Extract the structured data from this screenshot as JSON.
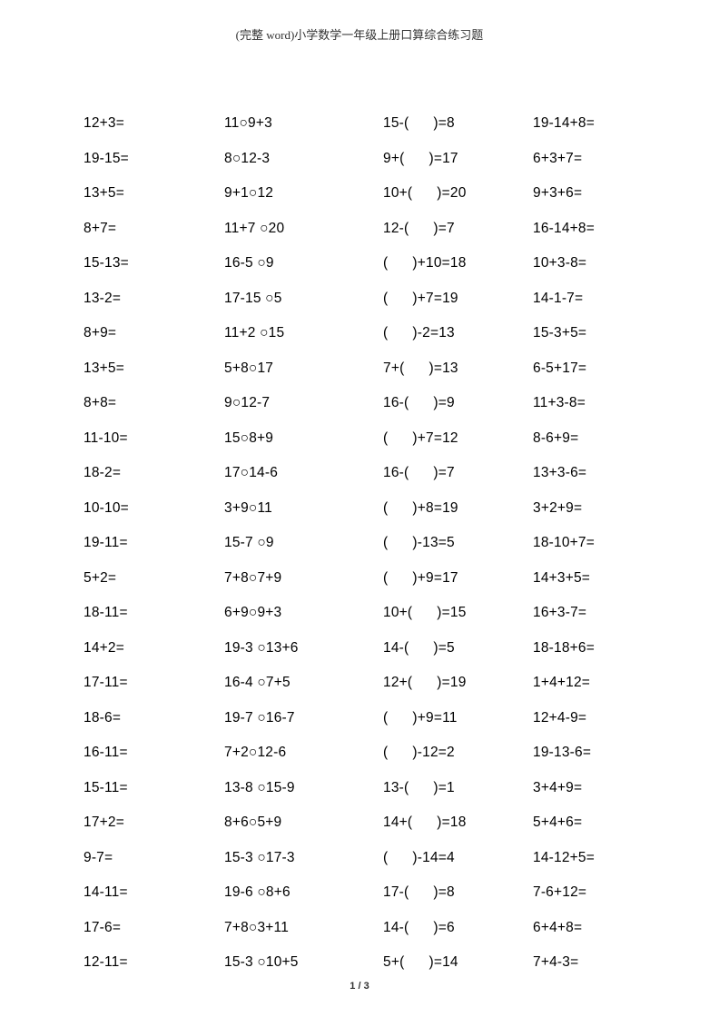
{
  "header": "(完整 word)小学数学一年级上册口算综合练习题",
  "footer": "1 / 3",
  "columns": [
    [
      "12+3=",
      "19-15=",
      "13+5=",
      "8+7=",
      "15-13=",
      "13-2=",
      "8+9=",
      "13+5=",
      "8+8=",
      "11-10=",
      "18-2=",
      "10-10=",
      "19-11=",
      "5+2=",
      "18-11=",
      "14+2=",
      "17-11=",
      "18-6=",
      "16-11=",
      "15-11=",
      "17+2=",
      "9-7=",
      "14-11=",
      "17-6=",
      "12-11="
    ],
    [
      "11○9+3",
      "8○12-3",
      "9+1○12",
      "11+7 ○20",
      "16-5 ○9",
      "17-15 ○5",
      "11+2 ○15",
      "5+8○17",
      "9○12-7",
      "15○8+9",
      "17○14-6",
      "3+9○11",
      "15-7 ○9",
      "7+8○7+9",
      "6+9○9+3",
      "19-3 ○13+6",
      "16-4 ○7+5",
      "19-7 ○16-7",
      "7+2○12-6",
      "13-8 ○15-9",
      "8+6○5+9",
      "15-3 ○17-3",
      "19-6 ○8+6",
      "7+8○3+11",
      "15-3 ○10+5"
    ],
    [
      "15-(      )=8",
      "9+(      )=17",
      "10+(      )=20",
      "12-(      )=7",
      "(      )+10=18",
      "(      )+7=19",
      "(      )-2=13",
      "7+(      )=13",
      "16-(      )=9",
      "(      )+7=12",
      "16-(      )=7",
      "(      )+8=19",
      "(      )-13=5",
      "(      )+9=17",
      "10+(      )=15",
      "14-(      )=5",
      "12+(      )=19",
      "(      )+9=11",
      "(      )-12=2",
      "13-(      )=1",
      "14+(      )=18",
      "(      )-14=4",
      "17-(      )=8",
      "14-(      )=6",
      "5+(      )=14"
    ],
    [
      "19-14+8=",
      "6+3+7=",
      "9+3+6=",
      "16-14+8=",
      "10+3-8=",
      "14-1-7=",
      "15-3+5=",
      "6-5+17=",
      "11+3-8=",
      "8-6+9=",
      "13+3-6=",
      "3+2+9=",
      "18-10+7=",
      "14+3+5=",
      "16+3-7=",
      "18-18+6=",
      "1+4+12=",
      "12+4-9=",
      "19-13-6=",
      "3+4+9=",
      "5+4+6=",
      "14-12+5=",
      "7-6+12=",
      "6+4+8=",
      "7+4-3="
    ]
  ]
}
